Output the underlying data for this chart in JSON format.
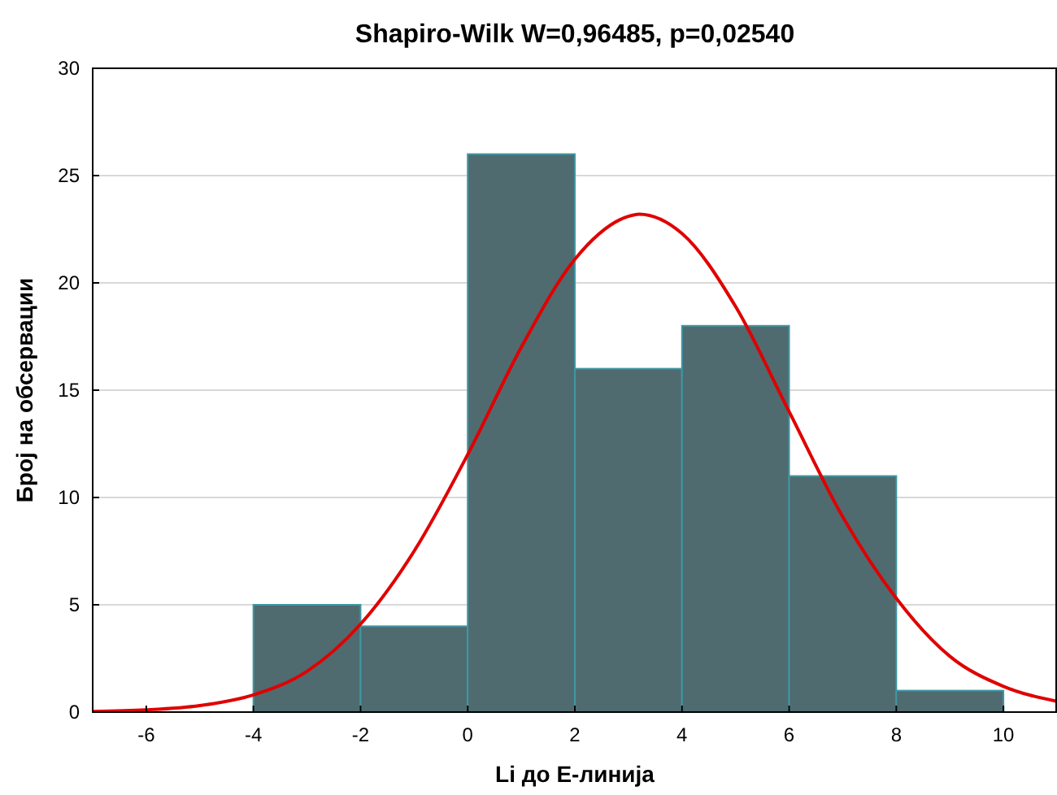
{
  "chart_data": {
    "type": "histogram",
    "title": "Shapiro-Wilk W=0,96485, p=0,02540",
    "xlabel": "Li до E-линија",
    "ylabel": "Број на обсервации",
    "xlim": [
      -7,
      11
    ],
    "xticks": [
      -6,
      -4,
      -2,
      0,
      2,
      4,
      6,
      8,
      10
    ],
    "ylim": [
      0,
      30
    ],
    "yticks": [
      0,
      5,
      10,
      15,
      20,
      25,
      30
    ],
    "grid": "y",
    "series": [
      {
        "color": "#4f6b70",
        "bins": [
          -4,
          -2,
          0,
          2,
          4,
          6,
          8,
          10
        ],
        "values": [
          5,
          4,
          26,
          16,
          18,
          11,
          1
        ]
      },
      {
        "type": "line",
        "color": "#e00000",
        "x": [
          -7,
          -6,
          -5,
          -4,
          -3,
          -2,
          -1,
          0,
          1,
          2,
          3,
          3.2,
          4,
          5,
          6,
          7,
          8,
          9,
          10,
          11
        ],
        "values": [
          0.03,
          0.1,
          0.3,
          0.8,
          1.9,
          4.1,
          7.5,
          12,
          17,
          21.1,
          23.1,
          23.2,
          22.3,
          18.9,
          14,
          9.1,
          5.3,
          2.6,
          1.2,
          0.5
        ]
      }
    ]
  }
}
